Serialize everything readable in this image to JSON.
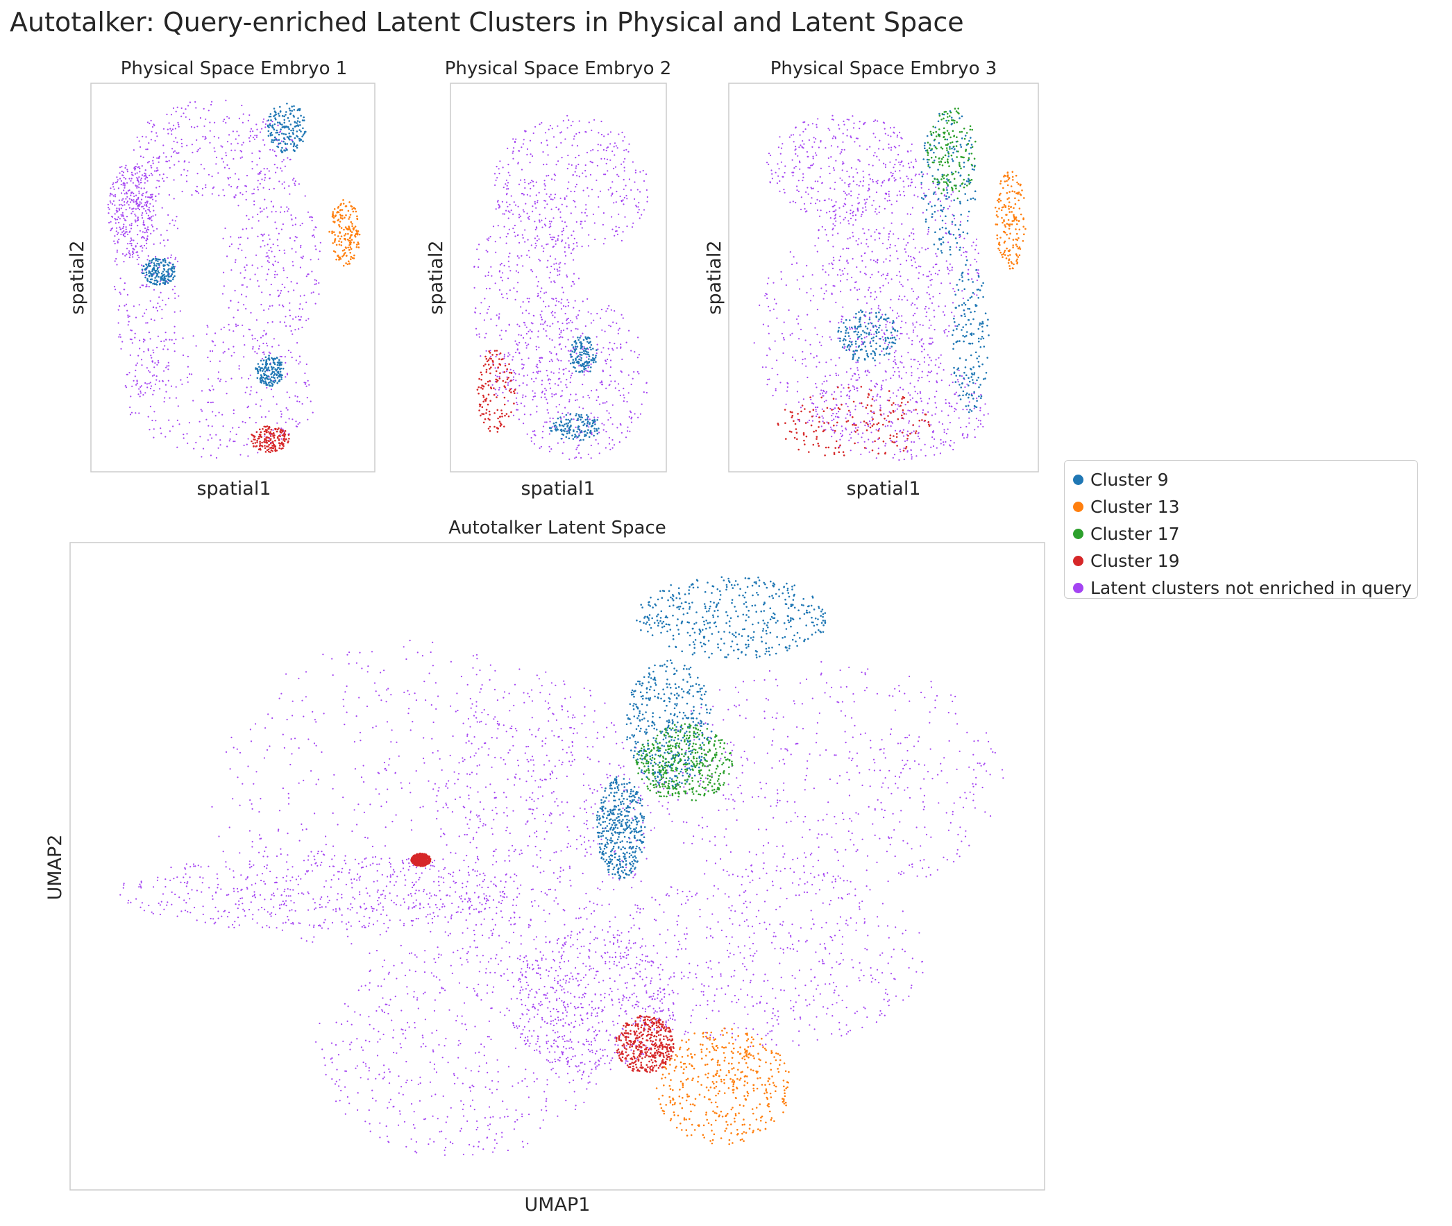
{
  "figure_title": "Autotalker: Query-enriched Latent Clusters in Physical and Latent Space",
  "colors": {
    "cluster_9": "#1f77b4",
    "cluster_13": "#ff7f0e",
    "cluster_17": "#2ca02c",
    "cluster_19": "#d62728",
    "not_enriched": "#a444f2"
  },
  "legend": {
    "items": [
      {
        "label": "Cluster 9",
        "color": "#1f77b4"
      },
      {
        "label": "Cluster 13",
        "color": "#ff7f0e"
      },
      {
        "label": "Cluster 17",
        "color": "#2ca02c"
      },
      {
        "label": "Cluster 19",
        "color": "#d62728"
      },
      {
        "label": "Latent clusters not enriched in query",
        "color": "#a444f2"
      }
    ]
  },
  "chart_data": [
    {
      "type": "scatter",
      "title": "Physical Space Embryo 1",
      "xlabel": "spatial1",
      "ylabel": "spatial2",
      "grid": false,
      "ticks": false,
      "series": [
        {
          "name": "Latent clusters not enriched in query",
          "color": "#a444f2",
          "regions": [
            [
              0.08,
              0.18,
              0.32,
              0.82
            ],
            [
              0.15,
              0.04,
              0.72,
              0.3
            ],
            [
              0.45,
              0.22,
              0.82,
              0.7
            ],
            [
              0.12,
              0.62,
              0.8,
              0.97
            ],
            [
              0.06,
              0.2,
              0.22,
              0.45
            ]
          ]
        },
        {
          "name": "Cluster 9",
          "color": "#1f77b4",
          "regions": [
            [
              0.62,
              0.05,
              0.76,
              0.18
            ],
            [
              0.18,
              0.45,
              0.3,
              0.52
            ],
            [
              0.58,
              0.7,
              0.68,
              0.78
            ]
          ]
        },
        {
          "name": "Cluster 13",
          "color": "#ff7f0e",
          "regions": [
            [
              0.84,
              0.3,
              0.95,
              0.47
            ]
          ]
        },
        {
          "name": "Cluster 19",
          "color": "#d62728",
          "regions": [
            [
              0.56,
              0.88,
              0.7,
              0.95
            ]
          ]
        }
      ]
    },
    {
      "type": "scatter",
      "title": "Physical Space Embryo 2",
      "xlabel": "spatial1",
      "ylabel": "spatial2",
      "grid": false,
      "ticks": false,
      "series": [
        {
          "name": "Latent clusters not enriched in query",
          "color": "#a444f2",
          "regions": [
            [
              0.2,
              0.08,
              0.92,
              0.45
            ],
            [
              0.1,
              0.25,
              0.6,
              0.85
            ],
            [
              0.25,
              0.55,
              0.92,
              0.97
            ]
          ]
        },
        {
          "name": "Cluster 9",
          "color": "#1f77b4",
          "regions": [
            [
              0.55,
              0.65,
              0.68,
              0.75
            ],
            [
              0.45,
              0.85,
              0.7,
              0.92
            ]
          ]
        },
        {
          "name": "Cluster 19",
          "color": "#d62728",
          "regions": [
            [
              0.12,
              0.68,
              0.3,
              0.9
            ]
          ]
        }
      ]
    },
    {
      "type": "scatter",
      "title": "Physical Space Embryo 3",
      "xlabel": "spatial1",
      "ylabel": "spatial2",
      "grid": false,
      "ticks": false,
      "series": [
        {
          "name": "Latent clusters not enriched in query",
          "color": "#a444f2",
          "regions": [
            [
              0.12,
              0.08,
              0.62,
              0.35
            ],
            [
              0.08,
              0.35,
              0.7,
              0.92
            ],
            [
              0.3,
              0.22,
              0.82,
              0.7
            ],
            [
              0.25,
              0.7,
              0.85,
              0.97
            ]
          ]
        },
        {
          "name": "Cluster 9",
          "color": "#1f77b4",
          "regions": [
            [
              0.62,
              0.06,
              0.8,
              0.45
            ],
            [
              0.72,
              0.45,
              0.84,
              0.85
            ],
            [
              0.35,
              0.58,
              0.55,
              0.72
            ]
          ]
        },
        {
          "name": "Cluster 13",
          "color": "#ff7f0e",
          "regions": [
            [
              0.86,
              0.22,
              0.96,
              0.48
            ]
          ]
        },
        {
          "name": "Cluster 17",
          "color": "#2ca02c",
          "regions": [
            [
              0.64,
              0.06,
              0.8,
              0.3
            ]
          ]
        },
        {
          "name": "Cluster 19",
          "color": "#d62728",
          "regions": [
            [
              0.15,
              0.78,
              0.65,
              0.97
            ]
          ]
        }
      ]
    },
    {
      "type": "scatter",
      "title": "Autotalker Latent Space",
      "xlabel": "UMAP1",
      "ylabel": "UMAP2",
      "grid": false,
      "ticks": false,
      "series": [
        {
          "name": "Latent clusters not enriched in query",
          "color": "#a444f2",
          "regions": [
            [
              0.14,
              0.15,
              0.55,
              0.65
            ],
            [
              0.05,
              0.48,
              0.45,
              0.6
            ],
            [
              0.38,
              0.2,
              0.6,
              0.7
            ],
            [
              0.6,
              0.18,
              0.96,
              0.55
            ],
            [
              0.55,
              0.5,
              0.88,
              0.78
            ],
            [
              0.25,
              0.62,
              0.55,
              0.95
            ],
            [
              0.45,
              0.6,
              0.62,
              0.82
            ]
          ]
        },
        {
          "name": "Cluster 9",
          "color": "#1f77b4",
          "regions": [
            [
              0.58,
              0.05,
              0.78,
              0.18
            ],
            [
              0.57,
              0.18,
              0.66,
              0.38
            ],
            [
              0.54,
              0.36,
              0.59,
              0.52
            ]
          ]
        },
        {
          "name": "Cluster 17",
          "color": "#2ca02c",
          "regions": [
            [
              0.58,
              0.28,
              0.68,
              0.4
            ]
          ]
        },
        {
          "name": "Cluster 13",
          "color": "#ff7f0e",
          "regions": [
            [
              0.6,
              0.75,
              0.74,
              0.93
            ]
          ]
        },
        {
          "name": "Cluster 19",
          "color": "#d62728",
          "regions": [
            [
              0.56,
              0.73,
              0.62,
              0.82
            ],
            [
              0.35,
              0.48,
              0.37,
              0.5
            ]
          ]
        }
      ]
    }
  ]
}
